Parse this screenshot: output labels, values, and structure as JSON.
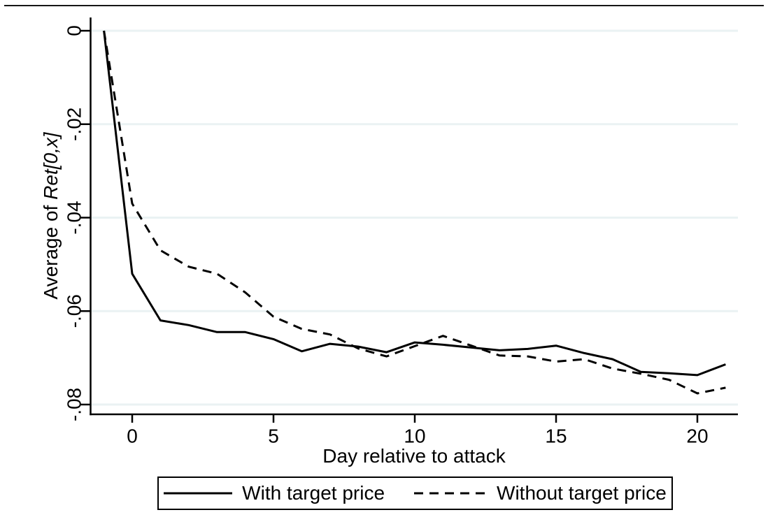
{
  "chart_data": {
    "type": "line",
    "title": "",
    "xlabel": "Day relative to attack",
    "ylabel_prefix": "Average of ",
    "ylabel_italic": "Ret[0,x]",
    "x": [
      -1,
      0,
      1,
      2,
      3,
      4,
      5,
      6,
      7,
      8,
      9,
      10,
      11,
      12,
      13,
      14,
      15,
      16,
      17,
      18,
      19,
      20,
      21
    ],
    "series": [
      {
        "name": "With target price",
        "style": "solid",
        "color": "#000000",
        "values": [
          0,
          -0.052,
          -0.062,
          -0.063,
          -0.0645,
          -0.0645,
          -0.066,
          -0.0686,
          -0.067,
          -0.0676,
          -0.0688,
          -0.0667,
          -0.0672,
          -0.0678,
          -0.0684,
          -0.0681,
          -0.0674,
          -0.069,
          -0.0703,
          -0.073,
          -0.0733,
          -0.0737,
          -0.0714
        ]
      },
      {
        "name": "Without target price",
        "style": "dashed",
        "color": "#000000",
        "values": [
          0,
          -0.037,
          -0.047,
          -0.0505,
          -0.052,
          -0.056,
          -0.0612,
          -0.0638,
          -0.065,
          -0.068,
          -0.0697,
          -0.0675,
          -0.0653,
          -0.0674,
          -0.0695,
          -0.0697,
          -0.0708,
          -0.0703,
          -0.0723,
          -0.0734,
          -0.0747,
          -0.0776,
          -0.0764
        ]
      }
    ],
    "x_ticks": {
      "values": [
        0,
        5,
        10,
        15,
        20
      ],
      "labels": [
        "0",
        "5",
        "10",
        "15",
        "20"
      ]
    },
    "y_ticks": {
      "values": [
        0,
        -0.02,
        -0.04,
        -0.06,
        -0.08
      ],
      "labels": [
        "0",
        "-.02",
        "-.04",
        "-.06",
        "-.08"
      ]
    },
    "xlim": [
      -1.5,
      21.45
    ],
    "ylim": [
      -0.0821,
      0.0028
    ],
    "grid": "horizontal",
    "gridline_color": "#eaf2f3",
    "axis_color": "#000000",
    "background": "#ffffff",
    "legend_position": "bottom"
  }
}
